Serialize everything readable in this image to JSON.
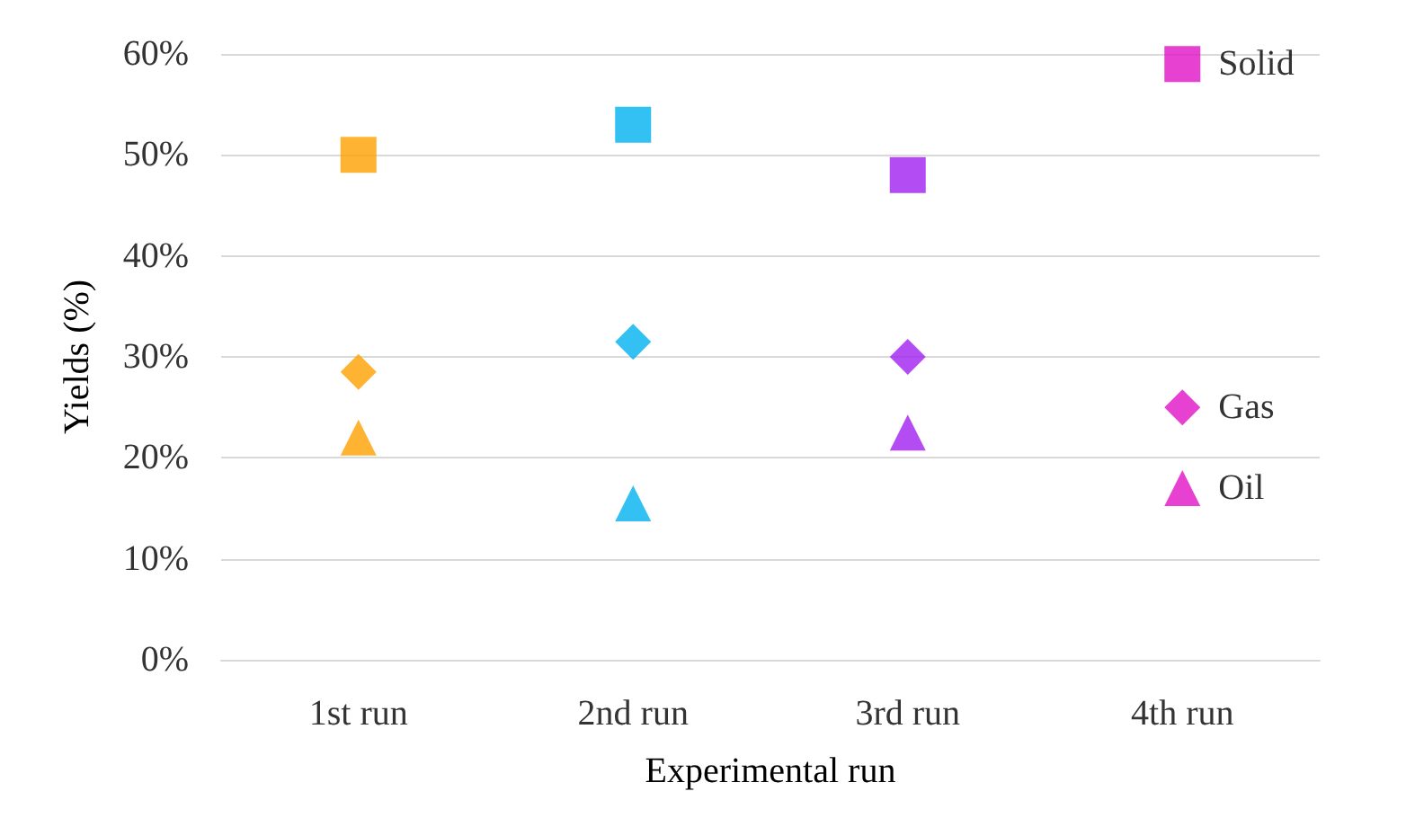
{
  "chart_data": {
    "type": "scatter",
    "xlabel": "Experimental run",
    "ylabel": "Yields (%)",
    "categories": [
      "1st run",
      "2nd run",
      "3rd run",
      "4th run"
    ],
    "ylim": [
      0,
      60
    ],
    "yticks": [
      {
        "value": 0,
        "label": "0%"
      },
      {
        "value": 10,
        "label": "10%"
      },
      {
        "value": 20,
        "label": "20%"
      },
      {
        "value": 30,
        "label": "30%"
      },
      {
        "value": 40,
        "label": "40%"
      },
      {
        "value": 50,
        "label": "50%"
      },
      {
        "value": 60,
        "label": "60%"
      }
    ],
    "grid": "y",
    "legend": false,
    "series": [
      {
        "name": "Solid",
        "marker": "square",
        "colors": [
          "#ffa000",
          "#00b0f0",
          "#a020f0",
          "#e011c4"
        ],
        "values": [
          50,
          53,
          48,
          59
        ]
      },
      {
        "name": "Gas",
        "marker": "diamond",
        "colors": [
          "#ffa000",
          "#00b0f0",
          "#a020f0",
          "#e011c4"
        ],
        "values": [
          28.5,
          31.5,
          30,
          25
        ]
      },
      {
        "name": "Oil",
        "marker": "triangle",
        "colors": [
          "#ffa000",
          "#00b0f0",
          "#a020f0",
          "#e011c4"
        ],
        "values": [
          22,
          15.5,
          22.5,
          17
        ]
      }
    ]
  }
}
